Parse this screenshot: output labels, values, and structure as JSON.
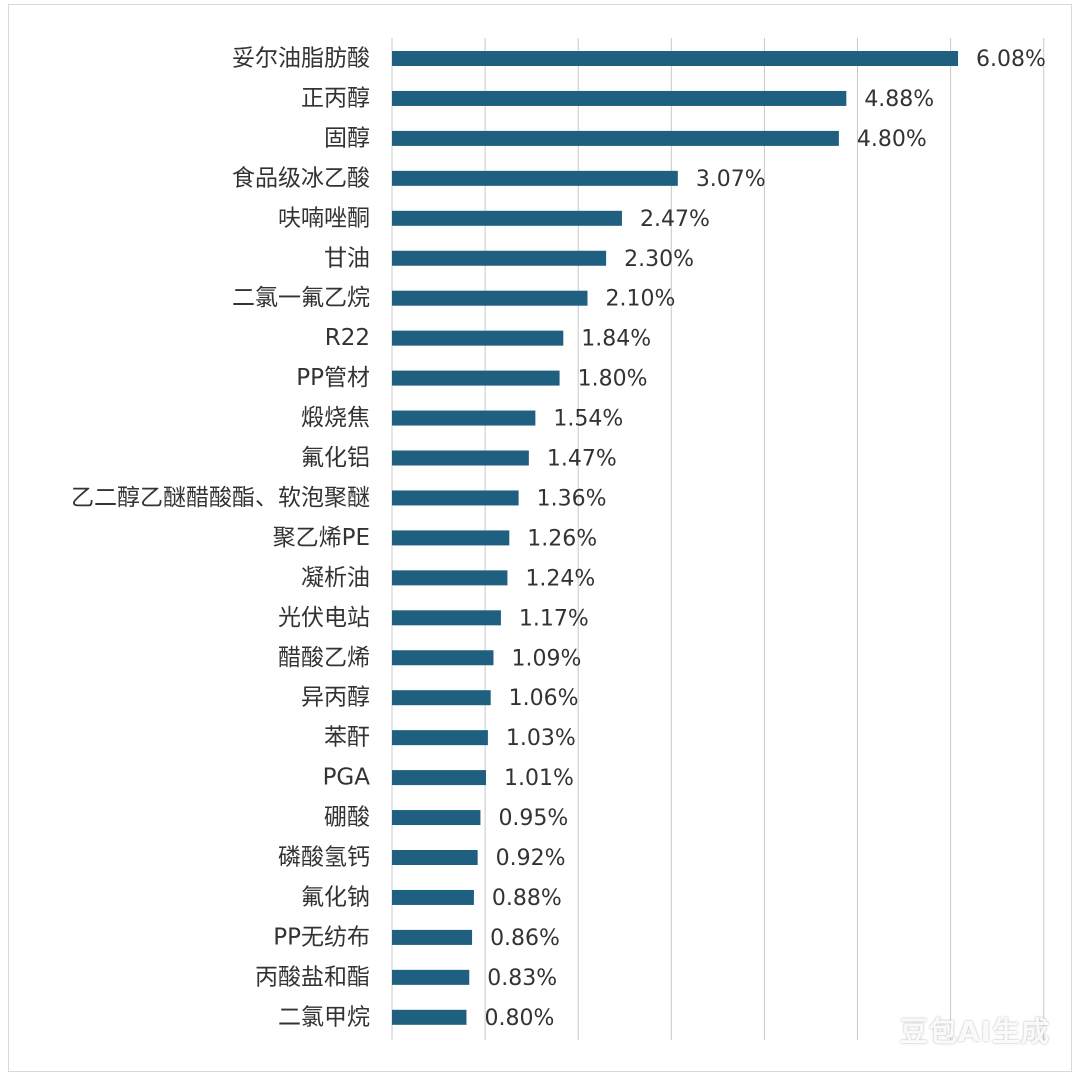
{
  "colors": {
    "bar": "#1f5f80",
    "grid": "#c8c8c8",
    "text": "#333333"
  },
  "watermark": "豆包AI生成",
  "chart_data": {
    "type": "bar",
    "orientation": "horizontal",
    "categories": [
      "妥尔油脂肪酸",
      "正丙醇",
      "固醇",
      "食品级冰乙酸",
      "呋喃唑酮",
      "甘油",
      "二氯一氟乙烷",
      "R22",
      "PP管材",
      "煅烧焦",
      "氟化铝",
      "乙二醇乙醚醋酸酯、软泡聚醚",
      "聚乙烯PE",
      "凝析油",
      "光伏电站",
      "醋酸乙烯",
      "异丙醇",
      "苯酐",
      "PGA",
      "硼酸",
      "磷酸氢钙",
      "氟化钠",
      "PP无纺布",
      "丙酸盐和酯",
      "二氯甲烷"
    ],
    "values": [
      6.08,
      4.88,
      4.8,
      3.07,
      2.47,
      2.3,
      2.1,
      1.84,
      1.8,
      1.54,
      1.47,
      1.36,
      1.26,
      1.24,
      1.17,
      1.09,
      1.06,
      1.03,
      1.01,
      0.95,
      0.92,
      0.88,
      0.86,
      0.83,
      0.8
    ],
    "value_labels": [
      "6.08%",
      "4.88%",
      "4.80%",
      "3.07%",
      "2.47%",
      "2.30%",
      "2.10%",
      "1.84%",
      "1.80%",
      "1.54%",
      "1.47%",
      "1.36%",
      "1.26%",
      "1.24%",
      "1.17%",
      "1.09%",
      "1.06%",
      "1.03%",
      "1.01%",
      "0.95%",
      "0.92%",
      "0.88%",
      "0.86%",
      "0.83%",
      "0.80%"
    ],
    "xlim": [
      0,
      7
    ],
    "grid": true,
    "grid_step": 1,
    "legend": "none"
  }
}
